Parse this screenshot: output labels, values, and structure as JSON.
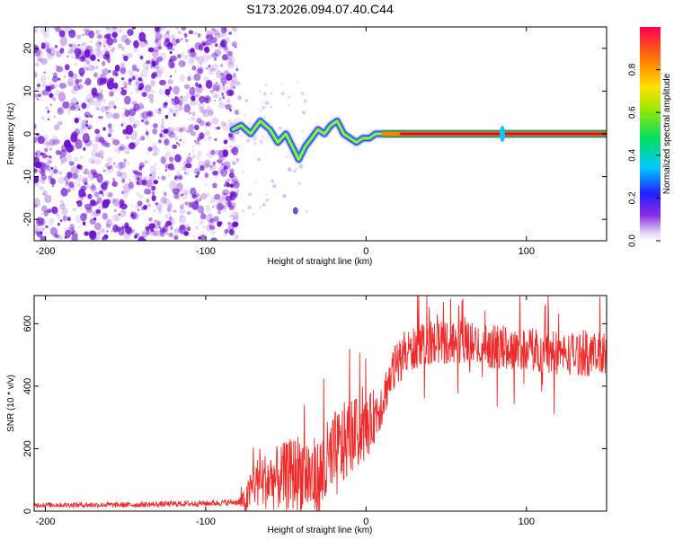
{
  "title": "S173.2026.094.07.40.C44",
  "colors": {
    "spectrogram_points": "#6a0dce",
    "snr_line": "#ee2b2b",
    "ridge": "#e0004f"
  },
  "chart_data": [
    {
      "type": "heatmap",
      "name": "spectrogram",
      "xlabel": "Height of straight line (km)",
      "ylabel": "Frequency (Hz)",
      "xlim": [
        -207,
        150
      ],
      "ylim": [
        -25,
        25
      ],
      "xticks": [
        -200,
        -100,
        0,
        100
      ],
      "yticks": [
        -20,
        -10,
        0,
        10,
        20
      ],
      "x_tick_labels": [
        "-200",
        "-100",
        "0",
        "100"
      ],
      "y_tick_labels": [
        "-20",
        "-10",
        "0",
        "10",
        "20"
      ],
      "noise_region_x": [
        -207,
        -80
      ],
      "signal_ridge": {
        "x": [
          -83,
          -78,
          -72,
          -66,
          -60,
          -55,
          -50,
          -46,
          -42,
          -38,
          -34,
          -30,
          -26,
          -22,
          -18,
          -14,
          -10,
          -6,
          -2,
          2,
          6,
          10,
          20,
          40,
          60,
          80,
          100,
          120,
          150
        ],
        "frequency": [
          1,
          2,
          0,
          3,
          1,
          -2,
          0,
          -3,
          -6,
          -3,
          -1,
          1,
          0,
          2,
          3,
          0,
          -1,
          -2,
          -1,
          -1,
          0,
          0,
          0,
          0,
          0,
          0,
          0,
          0,
          0
        ]
      },
      "colorbar": {
        "label": "Normalized spectral amplitude",
        "range": [
          0,
          1
        ],
        "ticks": [
          0.0,
          0.2,
          0.4,
          0.6,
          0.8
        ],
        "tick_labels": [
          "0.0",
          "0.2",
          "0.4",
          "0.6",
          "0.8"
        ]
      }
    },
    {
      "type": "line",
      "name": "snr",
      "xlabel": "Height of straight line (km)",
      "ylabel": "SNR (10 * v/v)",
      "xlim": [
        -207,
        150
      ],
      "ylim": [
        0,
        690
      ],
      "xticks": [
        -200,
        -100,
        0,
        100
      ],
      "yticks": [
        0,
        200,
        400,
        600
      ],
      "x_tick_labels": [
        "-200",
        "-100",
        "0",
        "100"
      ],
      "y_tick_labels": [
        "0",
        "200",
        "400",
        "600"
      ],
      "trend": {
        "x": [
          -207,
          -150,
          -100,
          -75,
          -70,
          -60,
          -50,
          -40,
          -30,
          -25,
          -20,
          -10,
          0,
          10,
          15,
          20,
          30,
          40,
          60,
          80,
          100,
          120,
          150
        ],
        "y": [
          20,
          20,
          25,
          30,
          90,
          100,
          110,
          130,
          90,
          140,
          170,
          240,
          260,
          350,
          430,
          480,
          520,
          540,
          540,
          525,
          520,
          505,
          500
        ]
      },
      "noise_amplitude": {
        "x": [
          -207,
          -80,
          -70,
          -40,
          -20,
          0,
          15,
          40,
          150
        ],
        "y": [
          8,
          10,
          80,
          130,
          150,
          100,
          70,
          70,
          70
        ]
      }
    }
  ]
}
